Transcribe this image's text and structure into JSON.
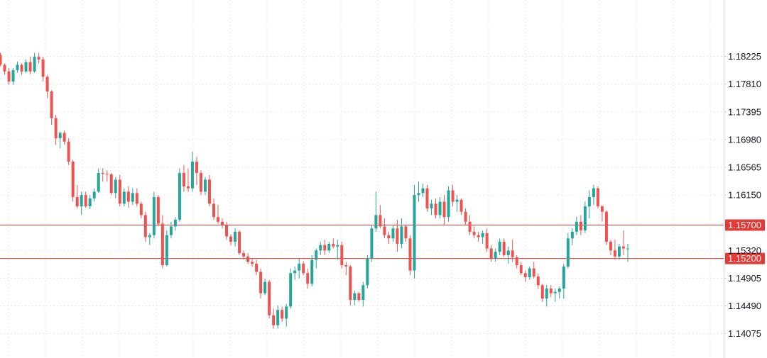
{
  "chart_data": {
    "type": "candlestick",
    "title": "",
    "xlabel": "",
    "ylabel": "",
    "ylim": [
      1.1371,
      1.1907
    ],
    "grid": true,
    "y_ticks": [
      "1.18225",
      "1.17810",
      "1.17395",
      "1.16980",
      "1.16565",
      "1.16150",
      "1.15320",
      "1.14905",
      "1.14490",
      "1.14075"
    ],
    "colors": {
      "up": "#26a69a",
      "down": "#ef5350",
      "hline": "#e53935",
      "grid": "#e6e6ea"
    },
    "horizontal_lines": [
      {
        "value": 1.157,
        "label": "1.15700"
      },
      {
        "value": 1.152,
        "label": "1.15200"
      }
    ],
    "ohlc": [
      [
        1.1825,
        1.1828,
        1.1808,
        1.181
      ],
      [
        1.181,
        1.1812,
        1.1795,
        1.18
      ],
      [
        1.18,
        1.1805,
        1.178,
        1.1785
      ],
      [
        1.1785,
        1.1805,
        1.178,
        1.1802
      ],
      [
        1.1802,
        1.1815,
        1.1798,
        1.181
      ],
      [
        1.181,
        1.1812,
        1.1795,
        1.18
      ],
      [
        1.18,
        1.1818,
        1.1798,
        1.1814
      ],
      [
        1.1814,
        1.1822,
        1.1796,
        1.18
      ],
      [
        1.18,
        1.1828,
        1.1798,
        1.1822
      ],
      [
        1.1822,
        1.1828,
        1.1812,
        1.1818
      ],
      [
        1.1818,
        1.1822,
        1.1785,
        1.1792
      ],
      [
        1.1792,
        1.1795,
        1.176,
        1.177
      ],
      [
        1.177,
        1.1772,
        1.172,
        1.173
      ],
      [
        1.173,
        1.1735,
        1.169,
        1.17
      ],
      [
        1.17,
        1.171,
        1.1685,
        1.1708
      ],
      [
        1.1708,
        1.1712,
        1.169,
        1.1695
      ],
      [
        1.1695,
        1.17,
        1.166,
        1.1665
      ],
      [
        1.1665,
        1.1668,
        1.1605,
        1.1612
      ],
      [
        1.1612,
        1.163,
        1.1595,
        1.1598
      ],
      [
        1.1598,
        1.162,
        1.1585,
        1.1615
      ],
      [
        1.1615,
        1.162,
        1.1596,
        1.1598
      ],
      [
        1.1598,
        1.1615,
        1.1594,
        1.161
      ],
      [
        1.161,
        1.1625,
        1.1605,
        1.162
      ],
      [
        1.162,
        1.1655,
        1.1618,
        1.1648
      ],
      [
        1.1648,
        1.1655,
        1.1635,
        1.1647
      ],
      [
        1.1647,
        1.1652,
        1.1635,
        1.1646
      ],
      [
        1.1646,
        1.1648,
        1.1615,
        1.1618
      ],
      [
        1.1618,
        1.1642,
        1.161,
        1.1638
      ],
      [
        1.1638,
        1.1645,
        1.1598,
        1.1602
      ],
      [
        1.1602,
        1.1625,
        1.1598,
        1.162
      ],
      [
        1.162,
        1.1628,
        1.1596,
        1.1605
      ],
      [
        1.1605,
        1.1625,
        1.16,
        1.1618
      ],
      [
        1.1618,
        1.1625,
        1.1598,
        1.1602
      ],
      [
        1.1602,
        1.1605,
        1.158,
        1.1585
      ],
      [
        1.1585,
        1.159,
        1.1545,
        1.1552
      ],
      [
        1.1552,
        1.1558,
        1.154,
        1.1555
      ],
      [
        1.1555,
        1.162,
        1.155,
        1.1612
      ],
      [
        1.1612,
        1.1615,
        1.1568,
        1.1572
      ],
      [
        1.1572,
        1.1585,
        1.1505,
        1.151
      ],
      [
        1.151,
        1.1562,
        1.1508,
        1.1555
      ],
      [
        1.1555,
        1.1575,
        1.155,
        1.1568
      ],
      [
        1.1568,
        1.1582,
        1.1562,
        1.1578
      ],
      [
        1.1578,
        1.1655,
        1.1575,
        1.1648
      ],
      [
        1.1648,
        1.166,
        1.162,
        1.1628
      ],
      [
        1.1628,
        1.1655,
        1.162,
        1.1625
      ],
      [
        1.1625,
        1.168,
        1.162,
        1.1665
      ],
      [
        1.1665,
        1.1672,
        1.163,
        1.1648
      ],
      [
        1.1648,
        1.1652,
        1.1615,
        1.162
      ],
      [
        1.162,
        1.1642,
        1.1615,
        1.1638
      ],
      [
        1.1638,
        1.1645,
        1.1598,
        1.1602
      ],
      [
        1.1602,
        1.161,
        1.1578,
        1.1582
      ],
      [
        1.1582,
        1.16,
        1.1572,
        1.1575
      ],
      [
        1.1575,
        1.158,
        1.1565,
        1.157
      ],
      [
        1.157,
        1.1575,
        1.1548,
        1.1553
      ],
      [
        1.1553,
        1.1556,
        1.154,
        1.1545
      ],
      [
        1.1545,
        1.1565,
        1.1538,
        1.156
      ],
      [
        1.156,
        1.1562,
        1.1525,
        1.1528
      ],
      [
        1.1528,
        1.1532,
        1.1518,
        1.1523
      ],
      [
        1.1523,
        1.1528,
        1.1512,
        1.1515
      ],
      [
        1.1515,
        1.152,
        1.1508,
        1.1512
      ],
      [
        1.1512,
        1.1518,
        1.1495,
        1.15
      ],
      [
        1.15,
        1.1505,
        1.146,
        1.1468
      ],
      [
        1.1468,
        1.149,
        1.1465,
        1.1485
      ],
      [
        1.1485,
        1.1488,
        1.143,
        1.1435
      ],
      [
        1.1435,
        1.1445,
        1.1415,
        1.142
      ],
      [
        1.142,
        1.145,
        1.1415,
        1.1443
      ],
      [
        1.1443,
        1.1448,
        1.1425,
        1.143
      ],
      [
        1.143,
        1.1452,
        1.1418,
        1.1448
      ],
      [
        1.1448,
        1.1505,
        1.1445,
        1.1498
      ],
      [
        1.1498,
        1.1508,
        1.1488,
        1.1502
      ],
      [
        1.1502,
        1.152,
        1.149,
        1.1512
      ],
      [
        1.1512,
        1.1516,
        1.1495,
        1.1498
      ],
      [
        1.1498,
        1.1505,
        1.1475,
        1.1482
      ],
      [
        1.1482,
        1.1525,
        1.1478,
        1.1518
      ],
      [
        1.1518,
        1.1535,
        1.1505,
        1.1532
      ],
      [
        1.1532,
        1.1545,
        1.1525,
        1.154
      ],
      [
        1.154,
        1.1548,
        1.1525,
        1.1532
      ],
      [
        1.1532,
        1.1545,
        1.1528,
        1.1542
      ],
      [
        1.1542,
        1.155,
        1.1535,
        1.1538
      ],
      [
        1.1538,
        1.1548,
        1.1518,
        1.154
      ],
      [
        1.154,
        1.1545,
        1.1505,
        1.151
      ],
      [
        1.151,
        1.1515,
        1.1495,
        1.1508
      ],
      [
        1.1508,
        1.151,
        1.145,
        1.1458
      ],
      [
        1.1458,
        1.1472,
        1.145,
        1.1468
      ],
      [
        1.1468,
        1.147,
        1.1455,
        1.1458
      ],
      [
        1.1458,
        1.1485,
        1.1448,
        1.148
      ],
      [
        1.148,
        1.1525,
        1.1475,
        1.152
      ],
      [
        1.152,
        1.157,
        1.1515,
        1.1565
      ],
      [
        1.1565,
        1.162,
        1.156,
        1.1585
      ],
      [
        1.1585,
        1.16,
        1.1565,
        1.1568
      ],
      [
        1.1568,
        1.158,
        1.155,
        1.1555
      ],
      [
        1.1555,
        1.156,
        1.1542,
        1.155
      ],
      [
        1.155,
        1.157,
        1.1545,
        1.1565
      ],
      [
        1.1565,
        1.1578,
        1.153,
        1.1542
      ],
      [
        1.1542,
        1.158,
        1.1535,
        1.1568
      ],
      [
        1.1568,
        1.157,
        1.1545,
        1.155
      ],
      [
        1.155,
        1.1555,
        1.1495,
        1.1502
      ],
      [
        1.1502,
        1.163,
        1.149,
        1.1615
      ],
      [
        1.1615,
        1.1635,
        1.1605,
        1.1618
      ],
      [
        1.1618,
        1.1632,
        1.1612,
        1.1625
      ],
      [
        1.1625,
        1.163,
        1.159,
        1.1595
      ],
      [
        1.1595,
        1.1608,
        1.1585,
        1.1602
      ],
      [
        1.1602,
        1.161,
        1.158,
        1.1585
      ],
      [
        1.1585,
        1.1612,
        1.158,
        1.1605
      ],
      [
        1.1605,
        1.1615,
        1.157,
        1.1582
      ],
      [
        1.1582,
        1.1628,
        1.1575,
        1.1622
      ],
      [
        1.1622,
        1.163,
        1.1598,
        1.1605
      ],
      [
        1.1605,
        1.1615,
        1.159,
        1.1608
      ],
      [
        1.1608,
        1.161,
        1.1585,
        1.159
      ],
      [
        1.159,
        1.1595,
        1.157,
        1.1575
      ],
      [
        1.1575,
        1.1585,
        1.1555,
        1.156
      ],
      [
        1.156,
        1.1568,
        1.155,
        1.1555
      ],
      [
        1.1555,
        1.156,
        1.1545,
        1.1552
      ],
      [
        1.1552,
        1.1562,
        1.1542,
        1.1558
      ],
      [
        1.1558,
        1.1565,
        1.153,
        1.1535
      ],
      [
        1.1535,
        1.154,
        1.1515,
        1.152
      ],
      [
        1.152,
        1.1535,
        1.1515,
        1.153
      ],
      [
        1.153,
        1.155,
        1.1525,
        1.1545
      ],
      [
        1.1545,
        1.155,
        1.1522,
        1.1525
      ],
      [
        1.1525,
        1.1538,
        1.1512,
        1.1532
      ],
      [
        1.1532,
        1.1548,
        1.1515,
        1.1522
      ],
      [
        1.1522,
        1.1525,
        1.1505,
        1.151
      ],
      [
        1.151,
        1.1515,
        1.1495,
        1.1498
      ],
      [
        1.1498,
        1.1502,
        1.1485,
        1.1492
      ],
      [
        1.1492,
        1.1508,
        1.1488,
        1.1505
      ],
      [
        1.1505,
        1.1515,
        1.149,
        1.1493
      ],
      [
        1.1493,
        1.1498,
        1.1475,
        1.148
      ],
      [
        1.148,
        1.1482,
        1.1455,
        1.146
      ],
      [
        1.146,
        1.148,
        1.1448,
        1.1475
      ],
      [
        1.1475,
        1.148,
        1.1462,
        1.1468
      ],
      [
        1.1468,
        1.1475,
        1.1455,
        1.147
      ],
      [
        1.147,
        1.1478,
        1.146,
        1.1475
      ],
      [
        1.1475,
        1.1512,
        1.146,
        1.1508
      ],
      [
        1.1508,
        1.1558,
        1.1505,
        1.155
      ],
      [
        1.155,
        1.1565,
        1.154,
        1.156
      ],
      [
        1.156,
        1.1582,
        1.1555,
        1.1575
      ],
      [
        1.1575,
        1.1585,
        1.1555,
        1.1562
      ],
      [
        1.1562,
        1.1605,
        1.1558,
        1.1598
      ],
      [
        1.1598,
        1.1622,
        1.158,
        1.1612
      ],
      [
        1.1612,
        1.163,
        1.16,
        1.1625
      ],
      [
        1.1625,
        1.1628,
        1.1595,
        1.1598
      ],
      [
        1.1598,
        1.16,
        1.1575,
        1.159
      ],
      [
        1.159,
        1.1592,
        1.154,
        1.1545
      ],
      [
        1.1545,
        1.1548,
        1.1525,
        1.1532
      ],
      [
        1.1532,
        1.1548,
        1.1518,
        1.1523
      ],
      [
        1.1523,
        1.1542,
        1.1518,
        1.1538
      ],
      [
        1.1538,
        1.1562,
        1.1525,
        1.1535
      ],
      [
        1.1535,
        1.1542,
        1.1515,
        1.1535
      ]
    ]
  }
}
